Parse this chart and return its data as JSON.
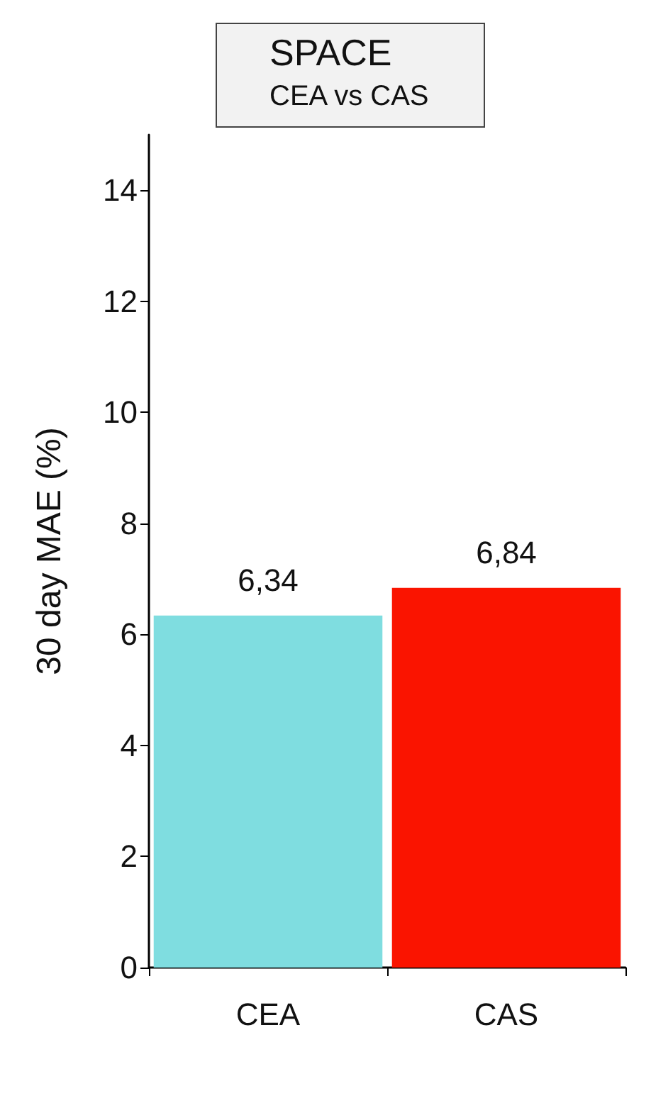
{
  "chart_data": {
    "type": "bar",
    "title": "SPACE",
    "subtitle": "CEA vs CAS",
    "ylabel": "30 day MAE (%)",
    "categories": [
      "CEA",
      "CAS"
    ],
    "values": [
      6.34,
      6.84
    ],
    "colors": [
      "#7fdde0",
      "#fa1400"
    ],
    "value_labels": [
      "6,34",
      "6,84"
    ],
    "ylim": [
      0,
      15
    ],
    "yticks": [
      0,
      2,
      4,
      6,
      8,
      10,
      12,
      14
    ],
    "grid": false
  }
}
